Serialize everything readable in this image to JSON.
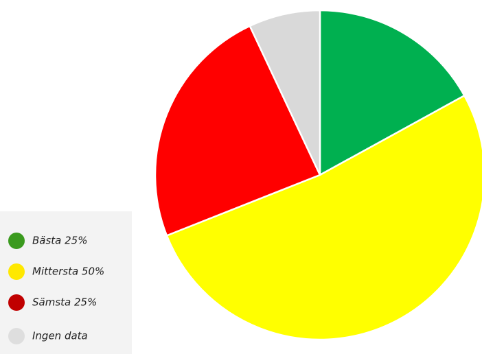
{
  "chart_data": {
    "type": "pie",
    "categories": [
      "Bästa 25%",
      "Mittersta 50%",
      "Sämsta 25%",
      "Ingen data"
    ],
    "values": [
      17,
      52,
      24,
      7
    ],
    "colors": [
      "#00b050",
      "#ffff00",
      "#ff0000",
      "#d9d9d9"
    ],
    "legend_colors": [
      "#3a9a1e",
      "#ffe800",
      "#c00000",
      "#dedede"
    ]
  }
}
